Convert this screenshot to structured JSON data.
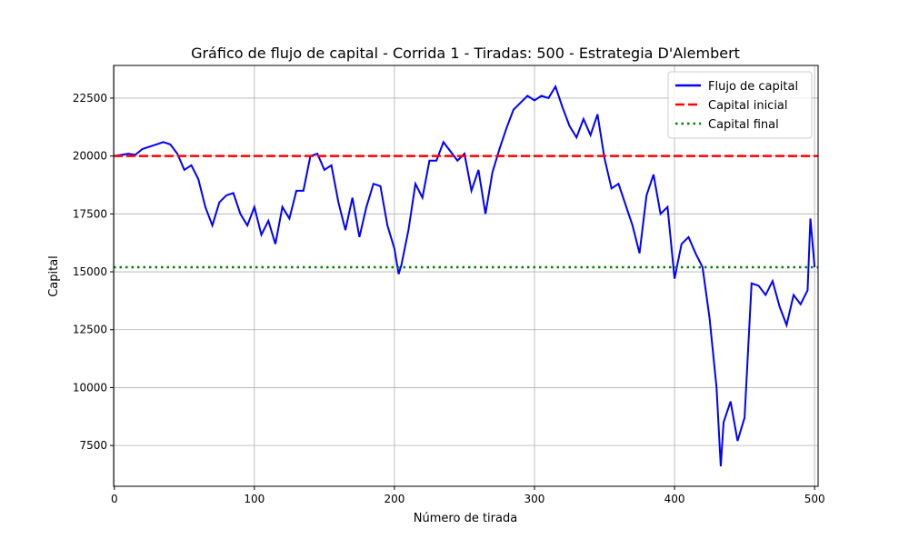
{
  "chart_data": {
    "type": "line",
    "title": "Gráfico de flujo de capital - Corrida 1 - Tiradas: 500 - Estrategia D'Alembert",
    "x_label": "Número de tirada",
    "y_label": "Capital",
    "x": [
      0,
      5,
      10,
      15,
      20,
      25,
      30,
      35,
      40,
      45,
      50,
      55,
      60,
      65,
      70,
      75,
      80,
      85,
      90,
      95,
      100,
      105,
      110,
      115,
      120,
      125,
      130,
      135,
      140,
      145,
      150,
      155,
      160,
      165,
      170,
      175,
      180,
      185,
      190,
      195,
      200,
      203,
      205,
      210,
      215,
      220,
      225,
      230,
      235,
      240,
      245,
      250,
      255,
      260,
      265,
      270,
      275,
      280,
      285,
      290,
      295,
      300,
      305,
      310,
      315,
      320,
      325,
      330,
      335,
      340,
      345,
      350,
      355,
      360,
      365,
      370,
      375,
      380,
      385,
      390,
      395,
      400,
      405,
      410,
      415,
      420,
      425,
      430,
      433,
      435,
      440,
      445,
      450,
      455,
      460,
      465,
      470,
      475,
      480,
      485,
      490,
      495,
      497,
      500
    ],
    "series": [
      {
        "name": "Flujo de capital",
        "color": "#0000ff",
        "values": [
          20000,
          20050,
          20100,
          20050,
          20300,
          20400,
          20500,
          20600,
          20500,
          20100,
          19400,
          19600,
          19000,
          17800,
          17000,
          18000,
          18300,
          18400,
          17500,
          17000,
          17800,
          16600,
          17200,
          16200,
          17800,
          17300,
          18500,
          18500,
          20000,
          20100,
          19400,
          19600,
          18000,
          16800,
          18200,
          16500,
          17800,
          18800,
          18700,
          17000,
          16000,
          14900,
          15300,
          16800,
          18800,
          18200,
          19800,
          19800,
          20600,
          20200,
          19800,
          20100,
          18500,
          19400,
          17500,
          19300,
          20300,
          21200,
          22000,
          22300,
          22600,
          22400,
          22600,
          22500,
          23000,
          22100,
          21300,
          20800,
          21600,
          20900,
          21800,
          19900,
          18600,
          18800,
          17900,
          17000,
          15800,
          18300,
          19200,
          17500,
          17800,
          14700,
          16200,
          16500,
          15800,
          15200,
          13000,
          10000,
          6600,
          8500,
          9400,
          7700,
          8700,
          14500,
          14400,
          14000,
          14600,
          13500,
          12700,
          14000,
          13600,
          14200,
          17300,
          15200
        ]
      }
    ],
    "hlines": [
      {
        "name": "Capital inicial",
        "color": "#ff0000",
        "value": 20000,
        "style": "dashed"
      },
      {
        "name": "Capital final",
        "color": "#008000",
        "value": 15200,
        "style": "dotted"
      }
    ],
    "xlim": [
      -0.5,
      502.5
    ],
    "ylim": [
      5740,
      23910
    ],
    "xticks": [
      0,
      100,
      200,
      300,
      400,
      500
    ],
    "yticks": [
      7500,
      10000,
      12500,
      15000,
      17500,
      20000,
      22500
    ],
    "grid": true,
    "legend": "upper right"
  }
}
